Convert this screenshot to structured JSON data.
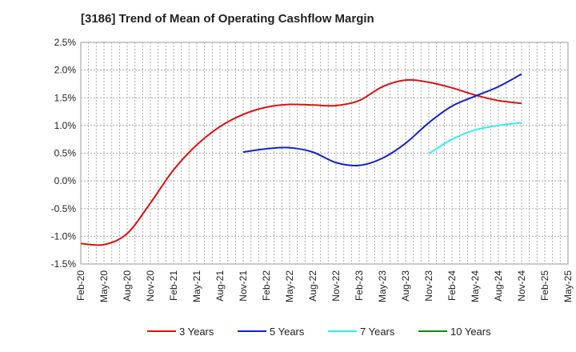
{
  "chart_data": {
    "type": "line",
    "title": "[3186]  Trend of Mean of Operating Cashflow Margin",
    "xlabel": "",
    "ylabel": "",
    "x_tick_labels": [
      "Feb-20",
      "May-20",
      "Aug-20",
      "Nov-20",
      "Feb-21",
      "May-21",
      "Aug-21",
      "Nov-21",
      "Feb-22",
      "May-22",
      "Aug-22",
      "Nov-22",
      "Feb-23",
      "May-23",
      "Aug-23",
      "Nov-23",
      "Feb-24",
      "May-24",
      "Aug-24",
      "Nov-24",
      "Feb-25",
      "May-25"
    ],
    "y_tick_labels": [
      "2.5%",
      "2.0%",
      "1.5%",
      "1.0%",
      "0.5%",
      "0.0%",
      "-0.5%",
      "-1.0%",
      "-1.5%"
    ],
    "ylim": [
      -1.5,
      2.5
    ],
    "y_unit": "%",
    "grid": true,
    "legend_position": "bottom",
    "series": [
      {
        "name": "3 Years",
        "color": "#dd1111",
        "x": [
          "Feb-20",
          "May-20",
          "Aug-20",
          "Nov-20",
          "Feb-21",
          "May-21",
          "Aug-21",
          "Nov-21",
          "Feb-22",
          "May-22",
          "Aug-22",
          "Nov-22",
          "Feb-23",
          "May-23",
          "Aug-23",
          "Nov-23",
          "Feb-24",
          "May-24",
          "Aug-24",
          "Nov-24"
        ],
        "values": [
          -1.13,
          -1.15,
          -0.95,
          -0.4,
          0.2,
          0.65,
          0.98,
          1.2,
          1.33,
          1.38,
          1.37,
          1.36,
          1.45,
          1.7,
          1.82,
          1.78,
          1.68,
          1.55,
          1.45,
          1.4
        ]
      },
      {
        "name": "5 Years",
        "color": "#1122cc",
        "x": [
          "Nov-21",
          "Feb-22",
          "May-22",
          "Aug-22",
          "Nov-22",
          "Feb-23",
          "May-23",
          "Aug-23",
          "Nov-23",
          "Feb-24",
          "May-24",
          "Aug-24",
          "Nov-24"
        ],
        "values": [
          0.52,
          0.58,
          0.6,
          0.52,
          0.33,
          0.28,
          0.41,
          0.68,
          1.05,
          1.35,
          1.53,
          1.7,
          1.93
        ]
      },
      {
        "name": "7 Years",
        "color": "#33eeee",
        "x": [
          "Nov-23",
          "Feb-24",
          "May-24",
          "Aug-24",
          "Nov-24"
        ],
        "values": [
          0.49,
          0.75,
          0.92,
          1.0,
          1.05
        ]
      },
      {
        "name": "10 Years",
        "color": "#118811",
        "x": [],
        "values": []
      }
    ]
  }
}
